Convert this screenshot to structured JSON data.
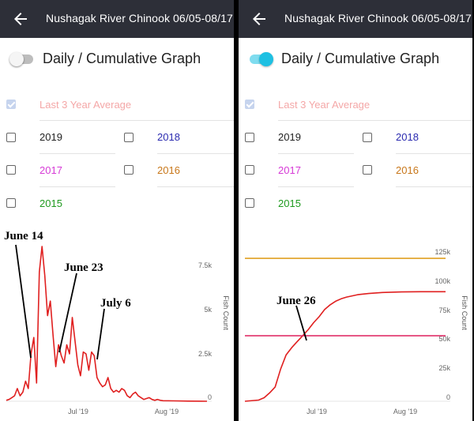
{
  "screens": [
    {
      "header": {
        "title": "Nushagak River Chinook 06/05-08/17"
      },
      "toggle": {
        "label": "Daily / Cumulative Graph",
        "state": "off"
      },
      "legend": [
        {
          "label": "Last 3 Year Average",
          "checked": true,
          "color": "#f4a7a7"
        },
        {
          "label": "2019",
          "checked": false,
          "color": "#222222"
        },
        {
          "label": "2018",
          "checked": false,
          "color": "#2b2bb0"
        },
        {
          "label": "2017",
          "checked": false,
          "color": "#d63ad6"
        },
        {
          "label": "2016",
          "checked": false,
          "color": "#c8771a"
        },
        {
          "label": "2015",
          "checked": false,
          "color": "#1f9a1f"
        }
      ],
      "chart": {
        "type": "line",
        "mode": "daily",
        "y_axis_title": "Fish Count",
        "y_ticks": [
          "7.5k",
          "5k",
          "2.5k",
          "0"
        ],
        "x_ticks": [
          "Jul '19",
          "Aug '19"
        ],
        "annotations": [
          "June 14",
          "June 23",
          "July 6"
        ]
      }
    },
    {
      "header": {
        "title": "Nushagak River Chinook 06/05-08/17"
      },
      "toggle": {
        "label": "Daily / Cumulative Graph",
        "state": "on"
      },
      "legend": [
        {
          "label": "Last 3 Year Average",
          "checked": true,
          "color": "#f4a7a7"
        },
        {
          "label": "2019",
          "checked": false,
          "color": "#222222"
        },
        {
          "label": "2018",
          "checked": false,
          "color": "#2b2bb0"
        },
        {
          "label": "2017",
          "checked": false,
          "color": "#d63ad6"
        },
        {
          "label": "2016",
          "checked": false,
          "color": "#c8771a"
        },
        {
          "label": "2015",
          "checked": false,
          "color": "#1f9a1f"
        }
      ],
      "chart": {
        "type": "line",
        "mode": "cumulative",
        "y_axis_title": "Fish Count",
        "y_ticks": [
          "125k",
          "100k",
          "75k",
          "50k",
          "25k",
          "0"
        ],
        "x_ticks": [
          "Jul '19",
          "Aug '19"
        ],
        "annotations": [
          "June 26"
        ]
      }
    }
  ],
  "chart_data": [
    {
      "type": "line",
      "title": "",
      "xlabel": "",
      "ylabel": "Fish Count",
      "ylim": [
        0,
        8500
      ],
      "x_unit": "date",
      "x": [
        "2019-06-05",
        "2019-06-06",
        "2019-06-07",
        "2019-06-08",
        "2019-06-09",
        "2019-06-10",
        "2019-06-11",
        "2019-06-12",
        "2019-06-13",
        "2019-06-14",
        "2019-06-15",
        "2019-06-16",
        "2019-06-17",
        "2019-06-18",
        "2019-06-19",
        "2019-06-20",
        "2019-06-21",
        "2019-06-22",
        "2019-06-23",
        "2019-06-24",
        "2019-06-25",
        "2019-06-26",
        "2019-06-27",
        "2019-06-28",
        "2019-06-29",
        "2019-06-30",
        "2019-07-01",
        "2019-07-02",
        "2019-07-03",
        "2019-07-04",
        "2019-07-05",
        "2019-07-06",
        "2019-07-07",
        "2019-07-08",
        "2019-07-09",
        "2019-07-10",
        "2019-07-11",
        "2019-07-12",
        "2019-07-13",
        "2019-07-14",
        "2019-07-15",
        "2019-07-16",
        "2019-07-17",
        "2019-07-18",
        "2019-07-19",
        "2019-07-20",
        "2019-07-21",
        "2019-07-22",
        "2019-07-23",
        "2019-07-24",
        "2019-07-25",
        "2019-07-26",
        "2019-07-27",
        "2019-07-28",
        "2019-07-29",
        "2019-07-30",
        "2019-07-31",
        "2019-08-01",
        "2019-08-05",
        "2019-08-10",
        "2019-08-17"
      ],
      "series": [
        {
          "color": "#e02020",
          "values": [
            50,
            100,
            200,
            300,
            700,
            300,
            500,
            1100,
            700,
            2600,
            3500,
            1000,
            7100,
            8500,
            6900,
            4700,
            5500,
            3600,
            1900,
            3100,
            2500,
            2100,
            3100,
            2600,
            4600,
            3300,
            2000,
            1400,
            2700,
            2600,
            1700,
            2700,
            2500,
            1300,
            1000,
            800,
            900,
            1300,
            700,
            500,
            600,
            500,
            700,
            600,
            300,
            200,
            400,
            500,
            300,
            200,
            100,
            150,
            200,
            100,
            50,
            100,
            50,
            30,
            20,
            10,
            0
          ]
        }
      ],
      "annotations": [
        {
          "text": "June 14",
          "x": "2019-06-14"
        },
        {
          "text": "June 23",
          "x": "2019-06-23"
        },
        {
          "text": "July 6",
          "x": "2019-07-06"
        }
      ]
    },
    {
      "type": "line",
      "title": "",
      "xlabel": "",
      "ylabel": "Fish Count",
      "ylim": [
        0,
        130000
      ],
      "x_unit": "date",
      "x": [
        "2019-06-05",
        "2019-06-10",
        "2019-06-12",
        "2019-06-14",
        "2019-06-16",
        "2019-06-18",
        "2019-06-20",
        "2019-06-22",
        "2019-06-24",
        "2019-06-26",
        "2019-06-28",
        "2019-06-30",
        "2019-07-02",
        "2019-07-04",
        "2019-07-06",
        "2019-07-08",
        "2019-07-10",
        "2019-07-12",
        "2019-07-14",
        "2019-07-16",
        "2019-07-20",
        "2019-07-25",
        "2019-08-01",
        "2019-08-08",
        "2019-08-17"
      ],
      "series": [
        {
          "color": "#e02020",
          "values": [
            0,
            1000,
            3000,
            7000,
            12000,
            27000,
            39000,
            45000,
            50000,
            55000,
            60000,
            66000,
            71000,
            77000,
            81000,
            84000,
            86000,
            87500,
            88500,
            89500,
            90500,
            91300,
            91800,
            92000,
            92000
          ]
        },
        {
          "color": "#e0a020",
          "values": [
            120000,
            120000,
            120000,
            120000,
            120000,
            120000,
            120000,
            120000,
            120000,
            120000,
            120000,
            120000,
            120000,
            120000,
            120000,
            120000,
            120000,
            120000,
            120000,
            120000,
            120000,
            120000,
            120000,
            120000,
            120000
          ]
        },
        {
          "color": "#e0306a",
          "values": [
            55000,
            55000,
            55000,
            55000,
            55000,
            55000,
            55000,
            55000,
            55000,
            55000,
            55000,
            55000,
            55000,
            55000,
            55000,
            55000,
            55000,
            55000,
            55000,
            55000,
            55000,
            55000,
            55000,
            55000,
            55000
          ]
        }
      ],
      "x_ticks": [
        {
          "label": "Jul '19",
          "x": "2019-07-01"
        },
        {
          "label": "Aug '19",
          "x": "2019-08-01"
        }
      ],
      "y_ticks": [
        0,
        25000,
        50000,
        75000,
        100000,
        125000
      ],
      "annotations": [
        {
          "text": "June 26",
          "x": "2019-06-26"
        }
      ]
    }
  ]
}
